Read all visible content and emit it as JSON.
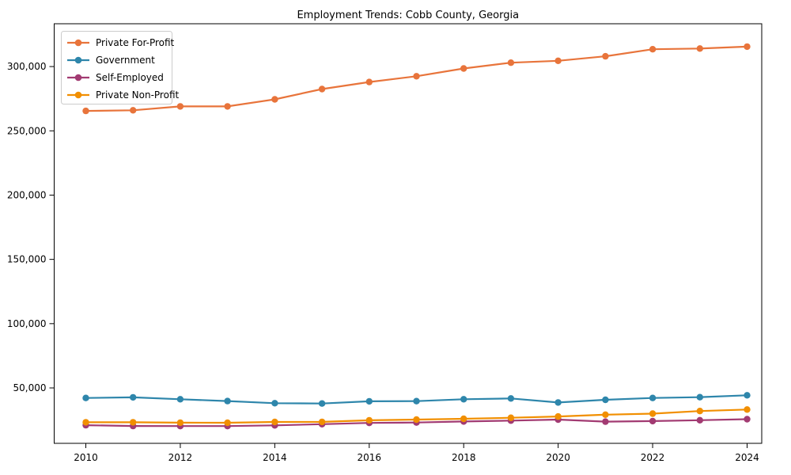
{
  "chart_data": {
    "type": "line",
    "title": "Employment Trends: Cobb County, Georgia",
    "xlabel": "",
    "ylabel": "",
    "x": [
      2010,
      2011,
      2012,
      2013,
      2014,
      2015,
      2016,
      2017,
      2018,
      2019,
      2020,
      2021,
      2022,
      2023,
      2024
    ],
    "series": [
      {
        "name": "Private For-Profit",
        "color": "#E8743B",
        "values": [
          265500,
          266000,
          269000,
          269000,
          274500,
          282500,
          288000,
          292500,
          298500,
          303000,
          304500,
          308000,
          313500,
          314000,
          315500
        ]
      },
      {
        "name": "Government",
        "color": "#2E86AB",
        "values": [
          42200,
          42700,
          41200,
          39800,
          38100,
          37900,
          39600,
          39700,
          41200,
          41800,
          38700,
          40800,
          42200,
          42800,
          44300
        ]
      },
      {
        "name": "Self-Employed",
        "color": "#A23B72",
        "values": [
          21000,
          20400,
          20300,
          20300,
          20900,
          21800,
          22800,
          23100,
          23900,
          24600,
          25400,
          23800,
          24200,
          24900,
          25700
        ]
      },
      {
        "name": "Private Non-Profit",
        "color": "#F18F01",
        "values": [
          23300,
          23300,
          23000,
          22900,
          23500,
          23600,
          24800,
          25400,
          26000,
          26800,
          27800,
          29200,
          30000,
          32000,
          33200
        ]
      }
    ],
    "xlim": [
      2009.33,
      2024.31
    ],
    "ylim": [
      6900,
      333300
    ],
    "x_ticks": [
      2010,
      2012,
      2014,
      2016,
      2018,
      2020,
      2022,
      2024
    ],
    "x_tick_labels": [
      "2010",
      "2012",
      "2014",
      "2016",
      "2018",
      "2020",
      "2022",
      "2024"
    ],
    "y_ticks": [
      50000,
      100000,
      150000,
      200000,
      250000,
      300000
    ],
    "y_tick_labels": [
      "50,000",
      "100,000",
      "150,000",
      "200,000",
      "250,000",
      "300,000"
    ],
    "grid": false,
    "legend_position": "upper-left",
    "marker": "o"
  }
}
